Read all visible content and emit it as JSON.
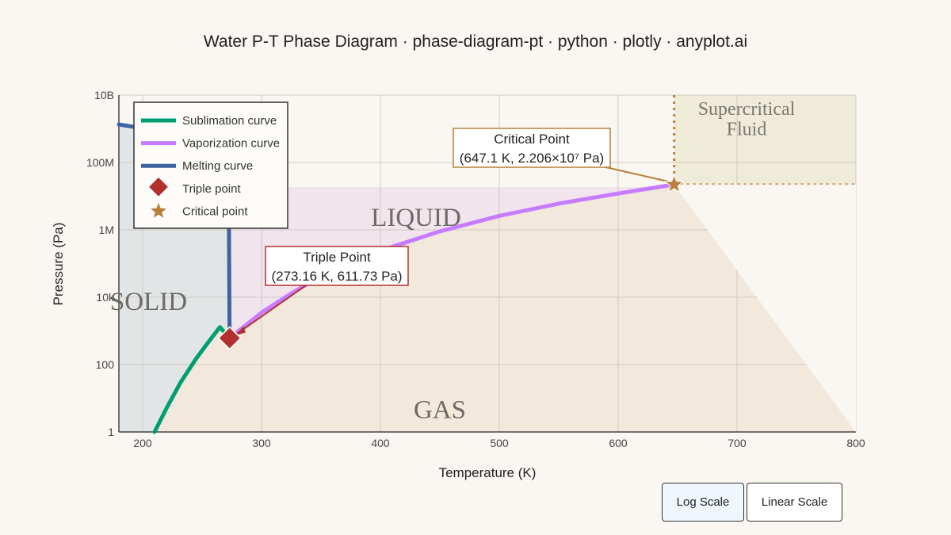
{
  "chart_data": {
    "type": "line",
    "title": "Water P-T Phase Diagram · phase-diagram-pt · python · plotly · anyplot.ai",
    "xlabel": "Temperature (K)",
    "ylabel": "Pressure (Pa)",
    "xlim": [
      180,
      800
    ],
    "ylim_log10": [
      0,
      10
    ],
    "y_scale": "log",
    "x_ticks": [
      200,
      300,
      400,
      500,
      600,
      700,
      800
    ],
    "y_ticks": [
      {
        "value": 1,
        "label": "1"
      },
      {
        "value": 100,
        "label": "100"
      },
      {
        "value": 10000,
        "label": "10k"
      },
      {
        "value": 1000000,
        "label": "1M"
      },
      {
        "value": 100000000,
        "label": "100M"
      },
      {
        "value": 10000000000,
        "label": "10B"
      }
    ],
    "grid": true,
    "legend_position": "top-left",
    "series": [
      {
        "name": "Sublimation curve",
        "color": "#009e73",
        "x": [
          210,
          220,
          232,
          245,
          255,
          265,
          273.16
        ],
        "y": [
          1,
          5,
          30,
          150,
          450,
          1300,
          611.73
        ]
      },
      {
        "name": "Vaporization curve",
        "color": "#c77cff",
        "x": [
          273.16,
          300,
          325,
          350,
          375,
          400,
          450,
          500,
          550,
          600,
          647.1
        ],
        "y": [
          611.73,
          3500,
          13000,
          42000,
          100000,
          240000,
          900000,
          2600000,
          6000000,
          12000000,
          22060000
        ]
      },
      {
        "name": "Melting curve",
        "color": "#3e64a0",
        "x": [
          180,
          195,
          210,
          225,
          240,
          252,
          262,
          268,
          271,
          272.5,
          273.16
        ],
        "y": [
          1350000000,
          1100000000,
          850000000,
          620000000,
          400000000,
          250000000,
          120000000,
          50000000,
          20000000,
          5000000,
          611.73
        ]
      }
    ],
    "points": [
      {
        "name": "Triple point",
        "x": 273.16,
        "y": 611.73,
        "color": "#b2312f",
        "marker": "diamond"
      },
      {
        "name": "Critical point",
        "x": 647.1,
        "y": 22060000,
        "color": "#b8803a",
        "marker": "star"
      }
    ],
    "regions": [
      {
        "label": "SOLID",
        "x": 205,
        "y": 8000
      },
      {
        "label": "LIQUID",
        "x": 430,
        "y": 2500000
      },
      {
        "label": "GAS",
        "x": 450,
        "y": 5
      },
      {
        "label": "Supercritical",
        "x": 700,
        "y": 4000000000
      },
      {
        "label": "Fluid",
        "x": 700,
        "y": 1000000000
      }
    ],
    "annotations": [
      {
        "line1": "Triple Point",
        "line2": "(273.16 K, 611.73 Pa)",
        "target": "triple"
      },
      {
        "line1": "Critical Point",
        "line2": "(647.1 K, 2.206×10⁷ Pa)",
        "target": "critical"
      }
    ]
  },
  "controls": {
    "log_label": "Log Scale",
    "linear_label": "Linear Scale"
  }
}
